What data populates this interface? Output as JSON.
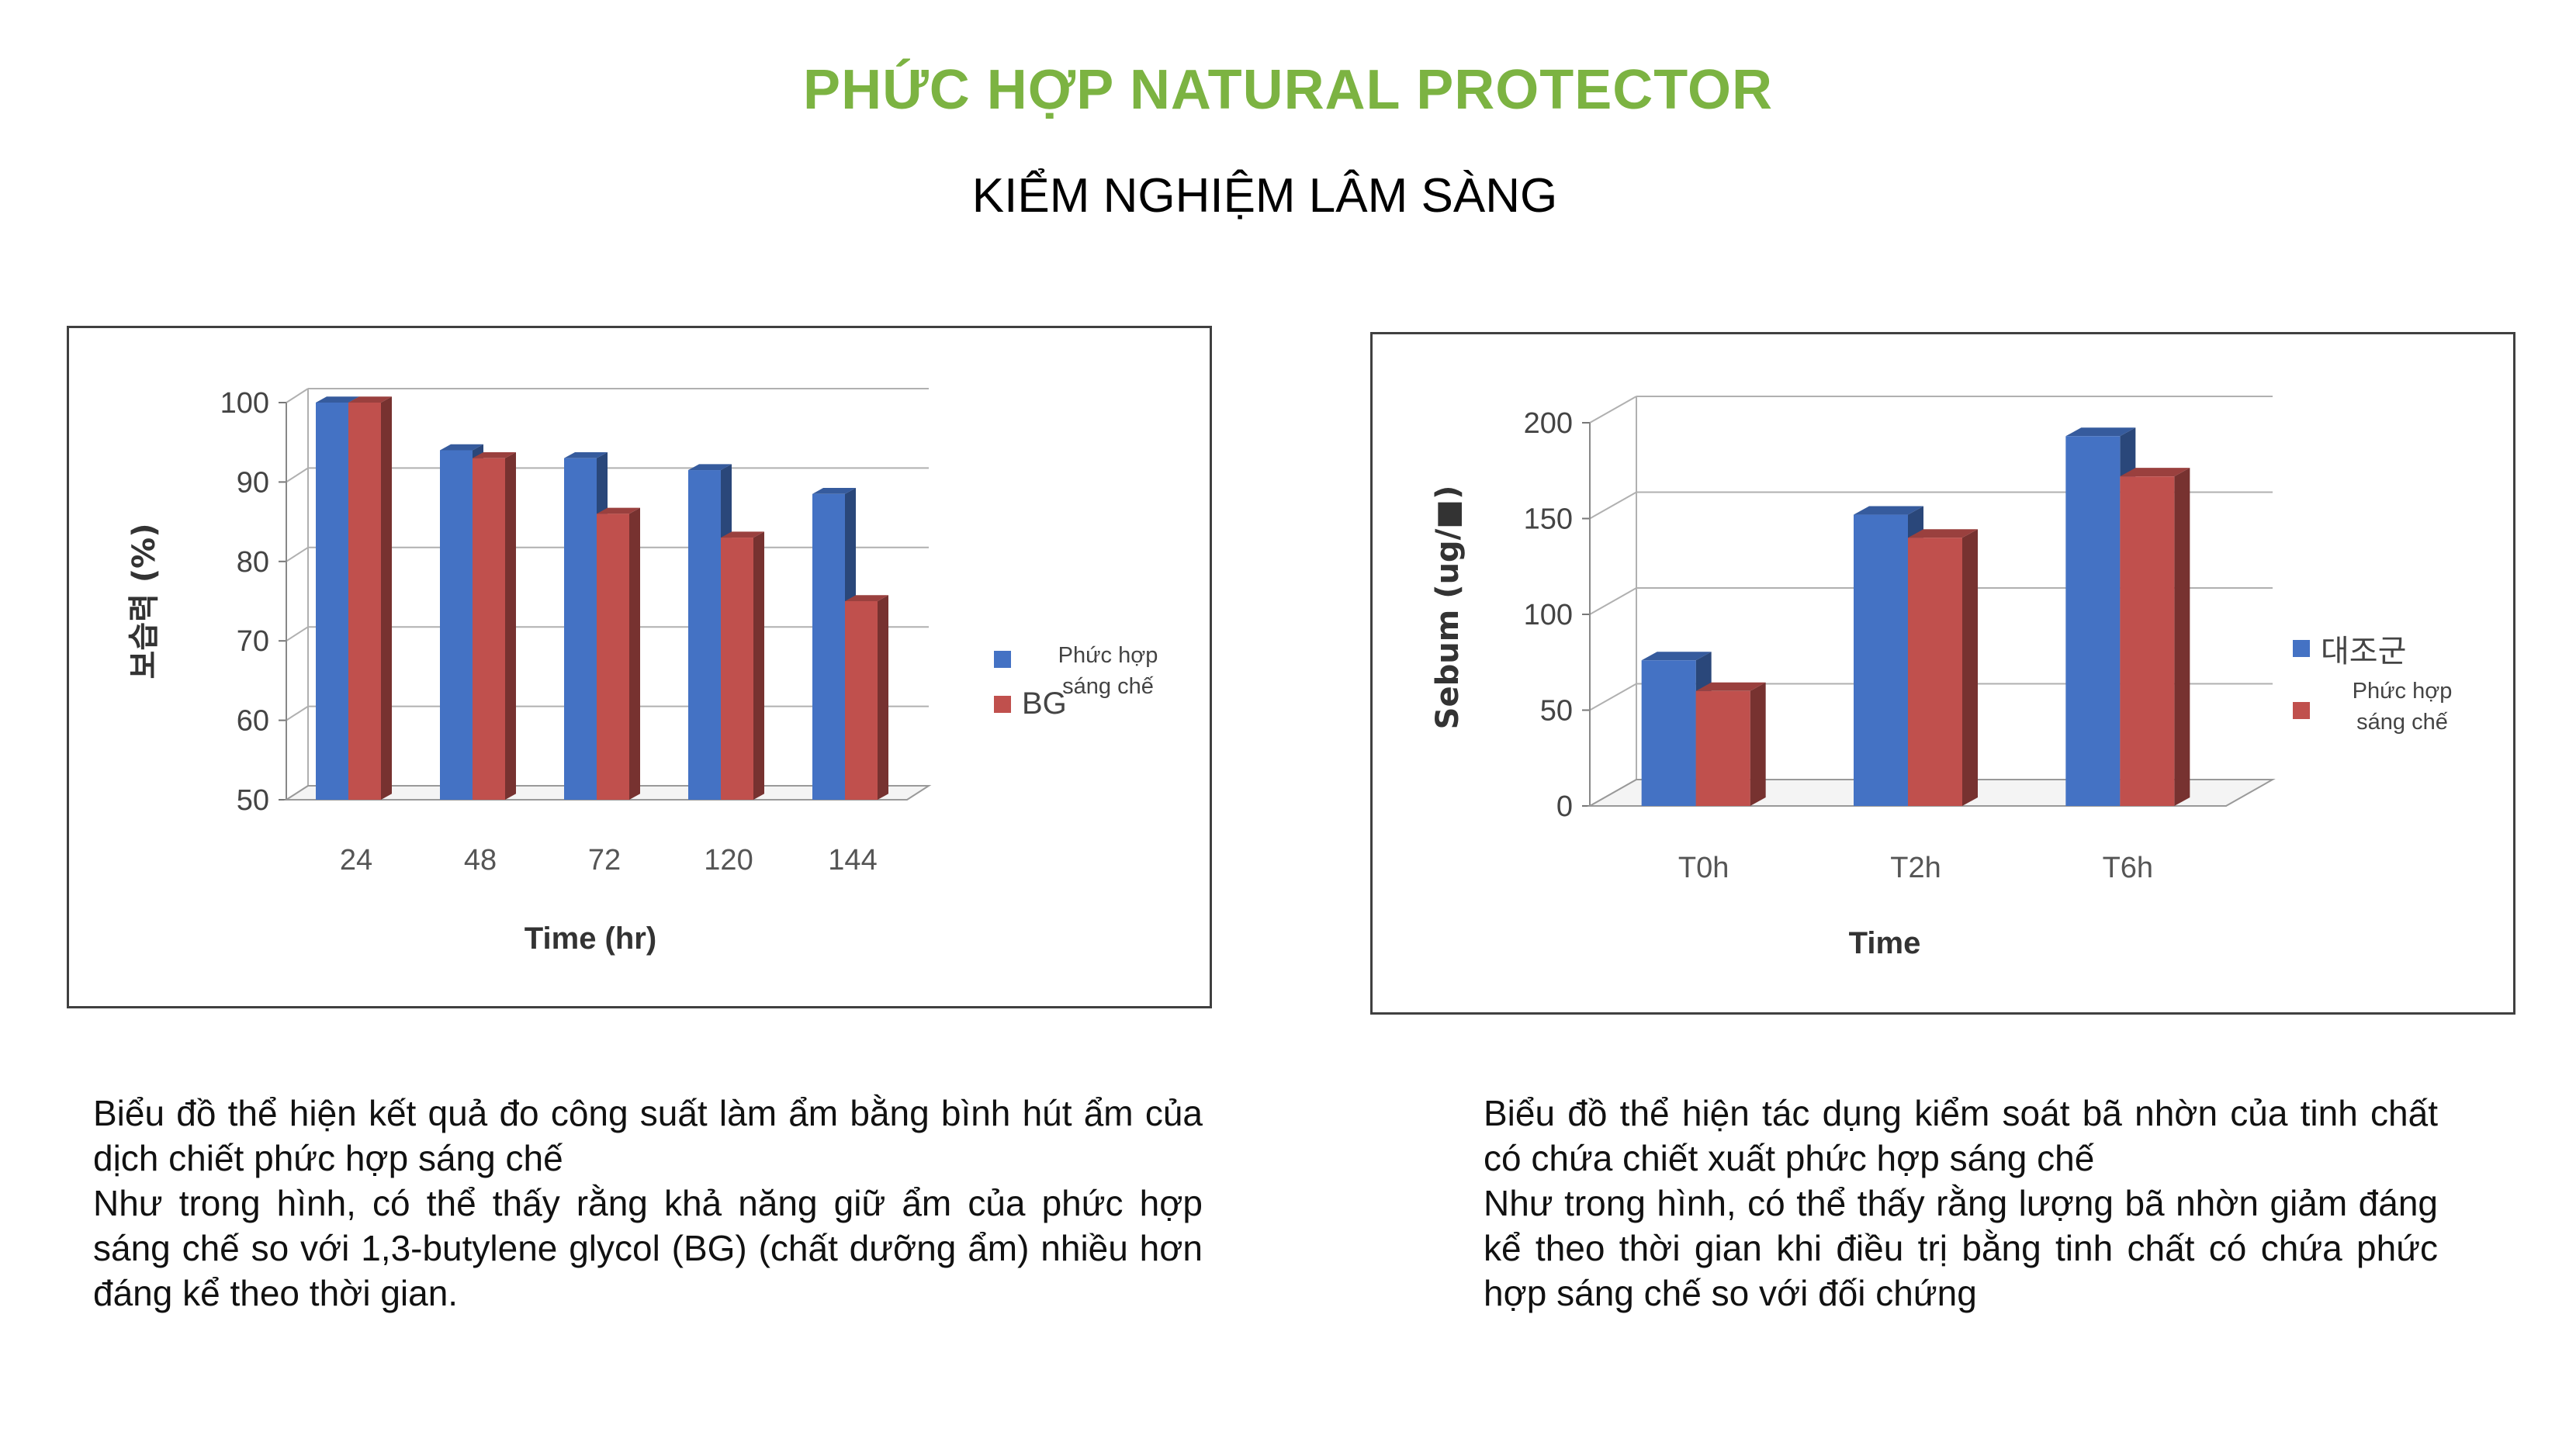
{
  "title": "PHỨC HỢP NATURAL PROTECTOR",
  "subtitle": "KIỂM NGHIỆM LÂM SÀNG",
  "colors": {
    "title_green": "#7cb342",
    "blue_series": "#4472c4",
    "red_series": "#c0504d"
  },
  "chart_data": [
    {
      "type": "bar",
      "categories": [
        "24",
        "48",
        "72",
        "120",
        "144"
      ],
      "series": [
        {
          "name": "Phức hợp sáng chế",
          "values": [
            100,
            94,
            93,
            91.5,
            88.5
          ]
        },
        {
          "name": "BG",
          "values": [
            100,
            93,
            86,
            83,
            75
          ]
        }
      ],
      "xlabel": "Time (hr)",
      "ylabel": "보습력 (%)",
      "ylim": [
        50,
        100
      ],
      "yticks": [
        "50",
        "60",
        "70",
        "80",
        "90",
        "100"
      ],
      "grid": true,
      "legend_position": "right"
    },
    {
      "type": "bar",
      "categories": [
        "T0h",
        "T2h",
        "T6h"
      ],
      "series": [
        {
          "name": "대조군",
          "values": [
            76,
            152,
            193
          ]
        },
        {
          "name": "Phức hợp sáng chế",
          "values": [
            60,
            140,
            172
          ]
        }
      ],
      "xlabel": "Time",
      "ylabel": "Sebum (ug/■)",
      "ylim": [
        0,
        200
      ],
      "yticks": [
        "0",
        "50",
        "100",
        "150",
        "200"
      ],
      "grid": true,
      "legend_position": "right"
    }
  ],
  "captions": {
    "left": {
      "line1": "Biểu đồ thể hiện kết quả đo công suất làm ẩm bằng bình hút ẩm của dịch chiết phức hợp sáng chế",
      "line2": "Như trong hình, có thể thấy rằng khả năng giữ ẩm của phức hợp sáng chế so với  1,3-butylene glycol (BG) (chất dưỡng ẩm) nhiều hơn đáng kể theo thời gian."
    },
    "right": {
      "line1": "Biểu đồ thể hiện tác dụng kiểm soát bã nhờn của tinh chất có chứa chiết xuất phức hợp sáng chế",
      "line2": "Như trong hình, có thể thấy rằng lượng bã nhờn giảm đáng kể theo thời gian khi điều trị bằng tinh chất có chứa phức hợp sáng chế so với đối chứng"
    }
  }
}
